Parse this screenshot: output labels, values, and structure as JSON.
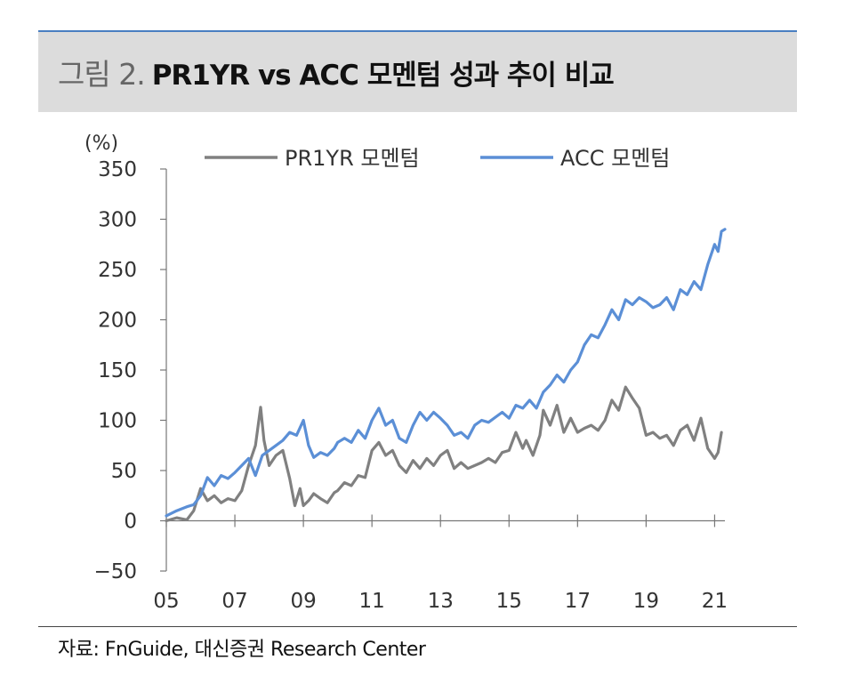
{
  "figure": {
    "label": "그림 2.",
    "title": "PR1YR vs ACC 모멘텀 성과 추이 비교"
  },
  "source": "자료: FnGuide, 대신증권 Research Center",
  "colors": {
    "pr1yr": "#808080",
    "acc": "#5b8fd6",
    "axis": "#777777",
    "header_bg": "#dcdcdc",
    "accent": "#4a7fc1"
  },
  "chart_data": {
    "type": "line",
    "title": "PR1YR vs ACC 모멘텀 성과 추이 비교",
    "ylabel": "(%)",
    "xlabel": "",
    "ylim": [
      -50,
      350
    ],
    "xlim": [
      2005,
      2021.3
    ],
    "yticks": [
      350,
      300,
      250,
      200,
      150,
      100,
      50,
      0,
      -50
    ],
    "ytick_labels": [
      "350",
      "300",
      "250",
      "200",
      "150",
      "100",
      "50",
      "0",
      "−50"
    ],
    "xticks": [
      2005,
      2007,
      2009,
      2011,
      2013,
      2015,
      2017,
      2019,
      2021
    ],
    "xtick_labels": [
      "05",
      "07",
      "09",
      "11",
      "13",
      "15",
      "17",
      "19",
      "21"
    ],
    "grid": false,
    "legend_position": "top",
    "series": [
      {
        "name": "PR1YR 모멘텀",
        "color": "#808080",
        "x": [
          2005.0,
          2005.3,
          2005.6,
          2005.8,
          2006.0,
          2006.2,
          2006.4,
          2006.6,
          2006.8,
          2007.0,
          2007.2,
          2007.4,
          2007.6,
          2007.75,
          2007.85,
          2008.0,
          2008.2,
          2008.4,
          2008.6,
          2008.75,
          2008.9,
          2009.0,
          2009.15,
          2009.3,
          2009.5,
          2009.7,
          2009.9,
          2010.0,
          2010.2,
          2010.4,
          2010.6,
          2010.8,
          2011.0,
          2011.2,
          2011.4,
          2011.6,
          2011.8,
          2012.0,
          2012.2,
          2012.4,
          2012.6,
          2012.8,
          2013.0,
          2013.2,
          2013.4,
          2013.6,
          2013.8,
          2014.0,
          2014.2,
          2014.4,
          2014.6,
          2014.8,
          2015.0,
          2015.2,
          2015.4,
          2015.5,
          2015.7,
          2015.9,
          2016.0,
          2016.2,
          2016.4,
          2016.6,
          2016.8,
          2017.0,
          2017.2,
          2017.4,
          2017.6,
          2017.8,
          2018.0,
          2018.2,
          2018.4,
          2018.6,
          2018.8,
          2019.0,
          2019.2,
          2019.4,
          2019.6,
          2019.8,
          2020.0,
          2020.2,
          2020.4,
          2020.6,
          2020.8,
          2021.0,
          2021.1,
          2021.2
        ],
        "values": [
          0,
          3,
          1,
          10,
          32,
          20,
          25,
          18,
          22,
          20,
          30,
          55,
          75,
          113,
          80,
          55,
          65,
          70,
          42,
          15,
          32,
          15,
          20,
          27,
          22,
          18,
          28,
          30,
          38,
          35,
          45,
          43,
          70,
          78,
          65,
          70,
          55,
          48,
          60,
          52,
          62,
          55,
          65,
          70,
          52,
          58,
          52,
          55,
          58,
          62,
          58,
          68,
          70,
          88,
          72,
          80,
          65,
          85,
          110,
          95,
          115,
          88,
          102,
          88,
          92,
          95,
          90,
          100,
          120,
          110,
          133,
          122,
          112,
          85,
          88,
          82,
          85,
          75,
          90,
          95,
          80,
          102,
          72,
          62,
          68,
          88
        ]
      },
      {
        "name": "ACC 모멘텀",
        "color": "#5b8fd6",
        "x": [
          2005.0,
          2005.3,
          2005.6,
          2005.8,
          2006.0,
          2006.2,
          2006.4,
          2006.6,
          2006.8,
          2007.0,
          2007.2,
          2007.4,
          2007.6,
          2007.8,
          2008.0,
          2008.2,
          2008.4,
          2008.6,
          2008.8,
          2009.0,
          2009.15,
          2009.3,
          2009.5,
          2009.7,
          2009.9,
          2010.0,
          2010.2,
          2010.4,
          2010.6,
          2010.8,
          2011.0,
          2011.2,
          2011.4,
          2011.6,
          2011.8,
          2012.0,
          2012.2,
          2012.4,
          2012.6,
          2012.8,
          2013.0,
          2013.2,
          2013.4,
          2013.6,
          2013.8,
          2014.0,
          2014.2,
          2014.4,
          2014.6,
          2014.8,
          2015.0,
          2015.2,
          2015.4,
          2015.6,
          2015.8,
          2016.0,
          2016.2,
          2016.4,
          2016.6,
          2016.8,
          2017.0,
          2017.2,
          2017.4,
          2017.6,
          2017.8,
          2018.0,
          2018.2,
          2018.4,
          2018.6,
          2018.8,
          2019.0,
          2019.2,
          2019.4,
          2019.6,
          2019.8,
          2020.0,
          2020.2,
          2020.4,
          2020.6,
          2020.8,
          2021.0,
          2021.1,
          2021.2,
          2021.3
        ],
        "values": [
          5,
          10,
          14,
          16,
          25,
          43,
          35,
          45,
          42,
          48,
          55,
          62,
          45,
          65,
          70,
          75,
          80,
          88,
          85,
          100,
          75,
          63,
          68,
          65,
          72,
          78,
          82,
          78,
          90,
          82,
          100,
          112,
          95,
          100,
          82,
          78,
          95,
          108,
          100,
          108,
          102,
          95,
          85,
          88,
          82,
          95,
          100,
          98,
          103,
          108,
          102,
          115,
          112,
          120,
          112,
          128,
          135,
          145,
          138,
          150,
          158,
          175,
          185,
          182,
          195,
          210,
          200,
          220,
          215,
          222,
          218,
          212,
          215,
          222,
          210,
          230,
          225,
          238,
          230,
          255,
          275,
          268,
          288,
          290
        ]
      }
    ]
  }
}
